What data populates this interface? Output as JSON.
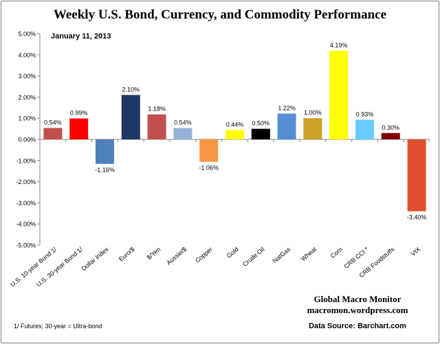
{
  "chart_data": {
    "type": "bar",
    "title": "Weekly U.S. Bond, Currency, and Commodity Performance",
    "subtitle": "January 11, 2013",
    "categories": [
      "U.S. 10-year Bond 1/",
      "U.S. 30-year Bond 1/",
      "Dollar Index",
      "Euro/$",
      "$/Yen",
      "Aussie/$",
      "Copper",
      "Gold",
      "Crude Oil",
      "NatGas",
      "Wheat",
      "Corn",
      "CRB CCI *",
      "CRB Foodstuffs",
      "VIX"
    ],
    "values": [
      0.54,
      0.99,
      -1.16,
      2.1,
      1.18,
      0.54,
      -1.06,
      0.44,
      0.5,
      1.22,
      1.0,
      4.19,
      0.93,
      0.3,
      -3.4
    ],
    "data_labels": [
      "0.54%",
      "0.99%",
      "-1.16%",
      "2.10%",
      "1.18%",
      "0.54%",
      "-1.06%",
      "0.44%",
      "0.50%",
      "1.22%",
      "1.00%",
      "4.19%",
      "0.93%",
      "0.30%",
      "-3.40%"
    ],
    "bar_colors": [
      "#c0504d",
      "#ff0000",
      "#4f81bd",
      "#1f3864",
      "#c0504d",
      "#95b3d7",
      "#f79646",
      "#ffff00",
      "#000000",
      "#558ed5",
      "#c9a227",
      "#ffff00",
      "#66ccff",
      "#7f0000",
      "#e0502e"
    ],
    "ylim": [
      -5,
      5
    ],
    "yticks": [
      5,
      4,
      3,
      2,
      1,
      0,
      -1,
      -2,
      -3,
      -4,
      -5
    ],
    "ytick_labels": [
      "5.00%",
      "4.00%",
      "3.00%",
      "2.00%",
      "1.00%",
      "0.00%",
      "-1.00%",
      "-2.00%",
      "-3.00%",
      "-4.00%",
      "-5.00%"
    ],
    "xlabel": "",
    "ylabel": "",
    "grid": false,
    "legend": "none"
  },
  "credits": {
    "line1": "Global Macro Monitor",
    "line2": "macromon.wordpress.com",
    "source": "Data Source:  Barchart.com"
  },
  "footnote": "1/  Futures; 30-year = Ultra-bond"
}
